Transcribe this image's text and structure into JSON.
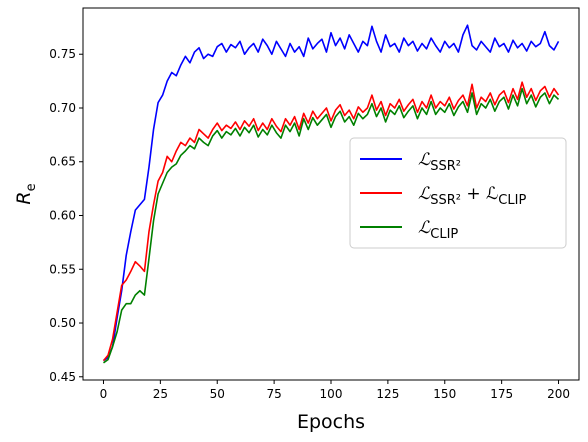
{
  "chart_data": {
    "type": "line",
    "title": "",
    "xlabel": "Epochs",
    "ylabel_main": "R",
    "ylabel_sub": "e",
    "xlim": [
      -9,
      209
    ],
    "ylim": [
      0.447,
      0.793
    ],
    "xticks": [
      0,
      25,
      50,
      75,
      100,
      125,
      150,
      175,
      200
    ],
    "xtick_labels": [
      "0",
      "25",
      "50",
      "75",
      "100",
      "125",
      "150",
      "175",
      "200"
    ],
    "yticks": [
      0.45,
      0.5,
      0.55,
      0.6,
      0.65,
      0.7,
      0.75
    ],
    "ytick_labels": [
      "0.45",
      "0.50",
      "0.55",
      "0.60",
      "0.65",
      "0.70",
      "0.75"
    ],
    "grid": false,
    "legend_position": "right-center",
    "series": [
      {
        "id": "ssr2",
        "name_main": "ℒ",
        "name_sub": "SSR²",
        "color": "#0000ff",
        "points": [
          [
            0,
            0.465
          ],
          [
            2,
            0.468
          ],
          [
            4,
            0.478
          ],
          [
            6,
            0.505
          ],
          [
            8,
            0.53
          ],
          [
            10,
            0.563
          ],
          [
            12,
            0.585
          ],
          [
            14,
            0.605
          ],
          [
            16,
            0.61
          ],
          [
            18,
            0.615
          ],
          [
            20,
            0.645
          ],
          [
            22,
            0.68
          ],
          [
            24,
            0.705
          ],
          [
            26,
            0.712
          ],
          [
            28,
            0.725
          ],
          [
            30,
            0.733
          ],
          [
            32,
            0.73
          ],
          [
            34,
            0.74
          ],
          [
            36,
            0.748
          ],
          [
            38,
            0.742
          ],
          [
            40,
            0.752
          ],
          [
            42,
            0.756
          ],
          [
            44,
            0.746
          ],
          [
            46,
            0.75
          ],
          [
            48,
            0.748
          ],
          [
            50,
            0.757
          ],
          [
            52,
            0.76
          ],
          [
            54,
            0.752
          ],
          [
            56,
            0.759
          ],
          [
            58,
            0.756
          ],
          [
            60,
            0.762
          ],
          [
            62,
            0.75
          ],
          [
            64,
            0.756
          ],
          [
            66,
            0.76
          ],
          [
            68,
            0.752
          ],
          [
            70,
            0.764
          ],
          [
            72,
            0.758
          ],
          [
            74,
            0.75
          ],
          [
            76,
            0.762
          ],
          [
            78,
            0.755
          ],
          [
            80,
            0.748
          ],
          [
            82,
            0.76
          ],
          [
            84,
            0.752
          ],
          [
            86,
            0.757
          ],
          [
            88,
            0.748
          ],
          [
            90,
            0.765
          ],
          [
            92,
            0.755
          ],
          [
            94,
            0.76
          ],
          [
            96,
            0.764
          ],
          [
            98,
            0.752
          ],
          [
            100,
            0.77
          ],
          [
            102,
            0.758
          ],
          [
            104,
            0.765
          ],
          [
            106,
            0.755
          ],
          [
            108,
            0.768
          ],
          [
            110,
            0.76
          ],
          [
            112,
            0.752
          ],
          [
            114,
            0.762
          ],
          [
            116,
            0.758
          ],
          [
            118,
            0.776
          ],
          [
            120,
            0.762
          ],
          [
            122,
            0.752
          ],
          [
            124,
            0.768
          ],
          [
            126,
            0.757
          ],
          [
            128,
            0.76
          ],
          [
            130,
            0.752
          ],
          [
            132,
            0.765
          ],
          [
            134,
            0.758
          ],
          [
            136,
            0.762
          ],
          [
            138,
            0.753
          ],
          [
            140,
            0.76
          ],
          [
            142,
            0.755
          ],
          [
            144,
            0.765
          ],
          [
            146,
            0.758
          ],
          [
            148,
            0.752
          ],
          [
            150,
            0.762
          ],
          [
            152,
            0.756
          ],
          [
            154,
            0.76
          ],
          [
            156,
            0.752
          ],
          [
            158,
            0.768
          ],
          [
            160,
            0.777
          ],
          [
            162,
            0.758
          ],
          [
            164,
            0.754
          ],
          [
            166,
            0.762
          ],
          [
            168,
            0.757
          ],
          [
            170,
            0.752
          ],
          [
            172,
            0.765
          ],
          [
            174,
            0.757
          ],
          [
            176,
            0.76
          ],
          [
            178,
            0.752
          ],
          [
            180,
            0.763
          ],
          [
            182,
            0.756
          ],
          [
            184,
            0.76
          ],
          [
            186,
            0.753
          ],
          [
            188,
            0.762
          ],
          [
            190,
            0.757
          ],
          [
            192,
            0.76
          ],
          [
            194,
            0.771
          ],
          [
            196,
            0.758
          ],
          [
            198,
            0.754
          ],
          [
            200,
            0.762
          ]
        ]
      },
      {
        "id": "ssr2_clip",
        "name_main": "ℒ",
        "name_sub": "SSR²",
        "name_plus": " + ℒ",
        "name_sub2": "CLIP",
        "color": "#ff0000",
        "points": [
          [
            0,
            0.465
          ],
          [
            2,
            0.47
          ],
          [
            4,
            0.485
          ],
          [
            6,
            0.51
          ],
          [
            8,
            0.535
          ],
          [
            10,
            0.54
          ],
          [
            12,
            0.548
          ],
          [
            14,
            0.557
          ],
          [
            16,
            0.553
          ],
          [
            18,
            0.548
          ],
          [
            20,
            0.585
          ],
          [
            22,
            0.61
          ],
          [
            24,
            0.632
          ],
          [
            26,
            0.64
          ],
          [
            28,
            0.655
          ],
          [
            30,
            0.65
          ],
          [
            32,
            0.66
          ],
          [
            34,
            0.668
          ],
          [
            36,
            0.665
          ],
          [
            38,
            0.672
          ],
          [
            40,
            0.668
          ],
          [
            42,
            0.68
          ],
          [
            44,
            0.676
          ],
          [
            46,
            0.672
          ],
          [
            48,
            0.68
          ],
          [
            50,
            0.686
          ],
          [
            52,
            0.679
          ],
          [
            54,
            0.684
          ],
          [
            56,
            0.681
          ],
          [
            58,
            0.687
          ],
          [
            60,
            0.68
          ],
          [
            62,
            0.688
          ],
          [
            64,
            0.683
          ],
          [
            66,
            0.69
          ],
          [
            68,
            0.679
          ],
          [
            70,
            0.686
          ],
          [
            72,
            0.68
          ],
          [
            74,
            0.69
          ],
          [
            76,
            0.683
          ],
          [
            78,
            0.678
          ],
          [
            80,
            0.69
          ],
          [
            82,
            0.684
          ],
          [
            84,
            0.692
          ],
          [
            86,
            0.68
          ],
          [
            88,
            0.695
          ],
          [
            90,
            0.686
          ],
          [
            92,
            0.697
          ],
          [
            94,
            0.69
          ],
          [
            96,
            0.695
          ],
          [
            98,
            0.7
          ],
          [
            100,
            0.688
          ],
          [
            102,
            0.698
          ],
          [
            104,
            0.703
          ],
          [
            106,
            0.693
          ],
          [
            108,
            0.698
          ],
          [
            110,
            0.69
          ],
          [
            112,
            0.701
          ],
          [
            114,
            0.696
          ],
          [
            116,
            0.7
          ],
          [
            118,
            0.712
          ],
          [
            120,
            0.698
          ],
          [
            122,
            0.706
          ],
          [
            124,
            0.693
          ],
          [
            126,
            0.704
          ],
          [
            128,
            0.7
          ],
          [
            130,
            0.708
          ],
          [
            132,
            0.697
          ],
          [
            134,
            0.703
          ],
          [
            136,
            0.708
          ],
          [
            138,
            0.696
          ],
          [
            140,
            0.706
          ],
          [
            142,
            0.7
          ],
          [
            144,
            0.712
          ],
          [
            146,
            0.7
          ],
          [
            148,
            0.706
          ],
          [
            150,
            0.702
          ],
          [
            152,
            0.71
          ],
          [
            154,
            0.699
          ],
          [
            156,
            0.707
          ],
          [
            158,
            0.712
          ],
          [
            160,
            0.702
          ],
          [
            162,
            0.722
          ],
          [
            164,
            0.7
          ],
          [
            166,
            0.71
          ],
          [
            168,
            0.706
          ],
          [
            170,
            0.714
          ],
          [
            172,
            0.703
          ],
          [
            174,
            0.712
          ],
          [
            176,
            0.716
          ],
          [
            178,
            0.705
          ],
          [
            180,
            0.718
          ],
          [
            182,
            0.708
          ],
          [
            184,
            0.724
          ],
          [
            186,
            0.71
          ],
          [
            188,
            0.718
          ],
          [
            190,
            0.707
          ],
          [
            192,
            0.716
          ],
          [
            194,
            0.72
          ],
          [
            196,
            0.71
          ],
          [
            198,
            0.718
          ],
          [
            200,
            0.712
          ]
        ]
      },
      {
        "id": "clip",
        "name_main": "ℒ",
        "name_sub": "CLIP",
        "color": "#008000",
        "points": [
          [
            0,
            0.463
          ],
          [
            2,
            0.466
          ],
          [
            4,
            0.478
          ],
          [
            6,
            0.492
          ],
          [
            8,
            0.512
          ],
          [
            10,
            0.518
          ],
          [
            12,
            0.518
          ],
          [
            14,
            0.526
          ],
          [
            16,
            0.53
          ],
          [
            18,
            0.526
          ],
          [
            20,
            0.56
          ],
          [
            22,
            0.595
          ],
          [
            24,
            0.62
          ],
          [
            26,
            0.63
          ],
          [
            28,
            0.64
          ],
          [
            30,
            0.645
          ],
          [
            32,
            0.648
          ],
          [
            34,
            0.656
          ],
          [
            36,
            0.66
          ],
          [
            38,
            0.665
          ],
          [
            40,
            0.662
          ],
          [
            42,
            0.672
          ],
          [
            44,
            0.668
          ],
          [
            46,
            0.665
          ],
          [
            48,
            0.674
          ],
          [
            50,
            0.679
          ],
          [
            52,
            0.672
          ],
          [
            54,
            0.678
          ],
          [
            56,
            0.675
          ],
          [
            58,
            0.681
          ],
          [
            60,
            0.674
          ],
          [
            62,
            0.682
          ],
          [
            64,
            0.677
          ],
          [
            66,
            0.684
          ],
          [
            68,
            0.673
          ],
          [
            70,
            0.68
          ],
          [
            72,
            0.675
          ],
          [
            74,
            0.684
          ],
          [
            76,
            0.677
          ],
          [
            78,
            0.672
          ],
          [
            80,
            0.684
          ],
          [
            82,
            0.678
          ],
          [
            84,
            0.686
          ],
          [
            86,
            0.674
          ],
          [
            88,
            0.69
          ],
          [
            90,
            0.68
          ],
          [
            92,
            0.691
          ],
          [
            94,
            0.684
          ],
          [
            96,
            0.689
          ],
          [
            98,
            0.694
          ],
          [
            100,
            0.682
          ],
          [
            102,
            0.692
          ],
          [
            104,
            0.697
          ],
          [
            106,
            0.687
          ],
          [
            108,
            0.692
          ],
          [
            110,
            0.684
          ],
          [
            112,
            0.695
          ],
          [
            114,
            0.69
          ],
          [
            116,
            0.694
          ],
          [
            118,
            0.704
          ],
          [
            120,
            0.692
          ],
          [
            122,
            0.7
          ],
          [
            124,
            0.687
          ],
          [
            126,
            0.698
          ],
          [
            128,
            0.694
          ],
          [
            130,
            0.702
          ],
          [
            132,
            0.691
          ],
          [
            134,
            0.697
          ],
          [
            136,
            0.702
          ],
          [
            138,
            0.69
          ],
          [
            140,
            0.7
          ],
          [
            142,
            0.694
          ],
          [
            144,
            0.706
          ],
          [
            146,
            0.694
          ],
          [
            148,
            0.7
          ],
          [
            150,
            0.696
          ],
          [
            152,
            0.704
          ],
          [
            154,
            0.693
          ],
          [
            156,
            0.701
          ],
          [
            158,
            0.706
          ],
          [
            160,
            0.696
          ],
          [
            162,
            0.714
          ],
          [
            164,
            0.694
          ],
          [
            166,
            0.704
          ],
          [
            168,
            0.7
          ],
          [
            170,
            0.708
          ],
          [
            172,
            0.697
          ],
          [
            174,
            0.706
          ],
          [
            176,
            0.71
          ],
          [
            178,
            0.699
          ],
          [
            180,
            0.712
          ],
          [
            182,
            0.702
          ],
          [
            184,
            0.718
          ],
          [
            186,
            0.704
          ],
          [
            188,
            0.712
          ],
          [
            190,
            0.701
          ],
          [
            192,
            0.71
          ],
          [
            194,
            0.714
          ],
          [
            196,
            0.704
          ],
          [
            198,
            0.712
          ],
          [
            200,
            0.708
          ]
        ]
      }
    ]
  }
}
